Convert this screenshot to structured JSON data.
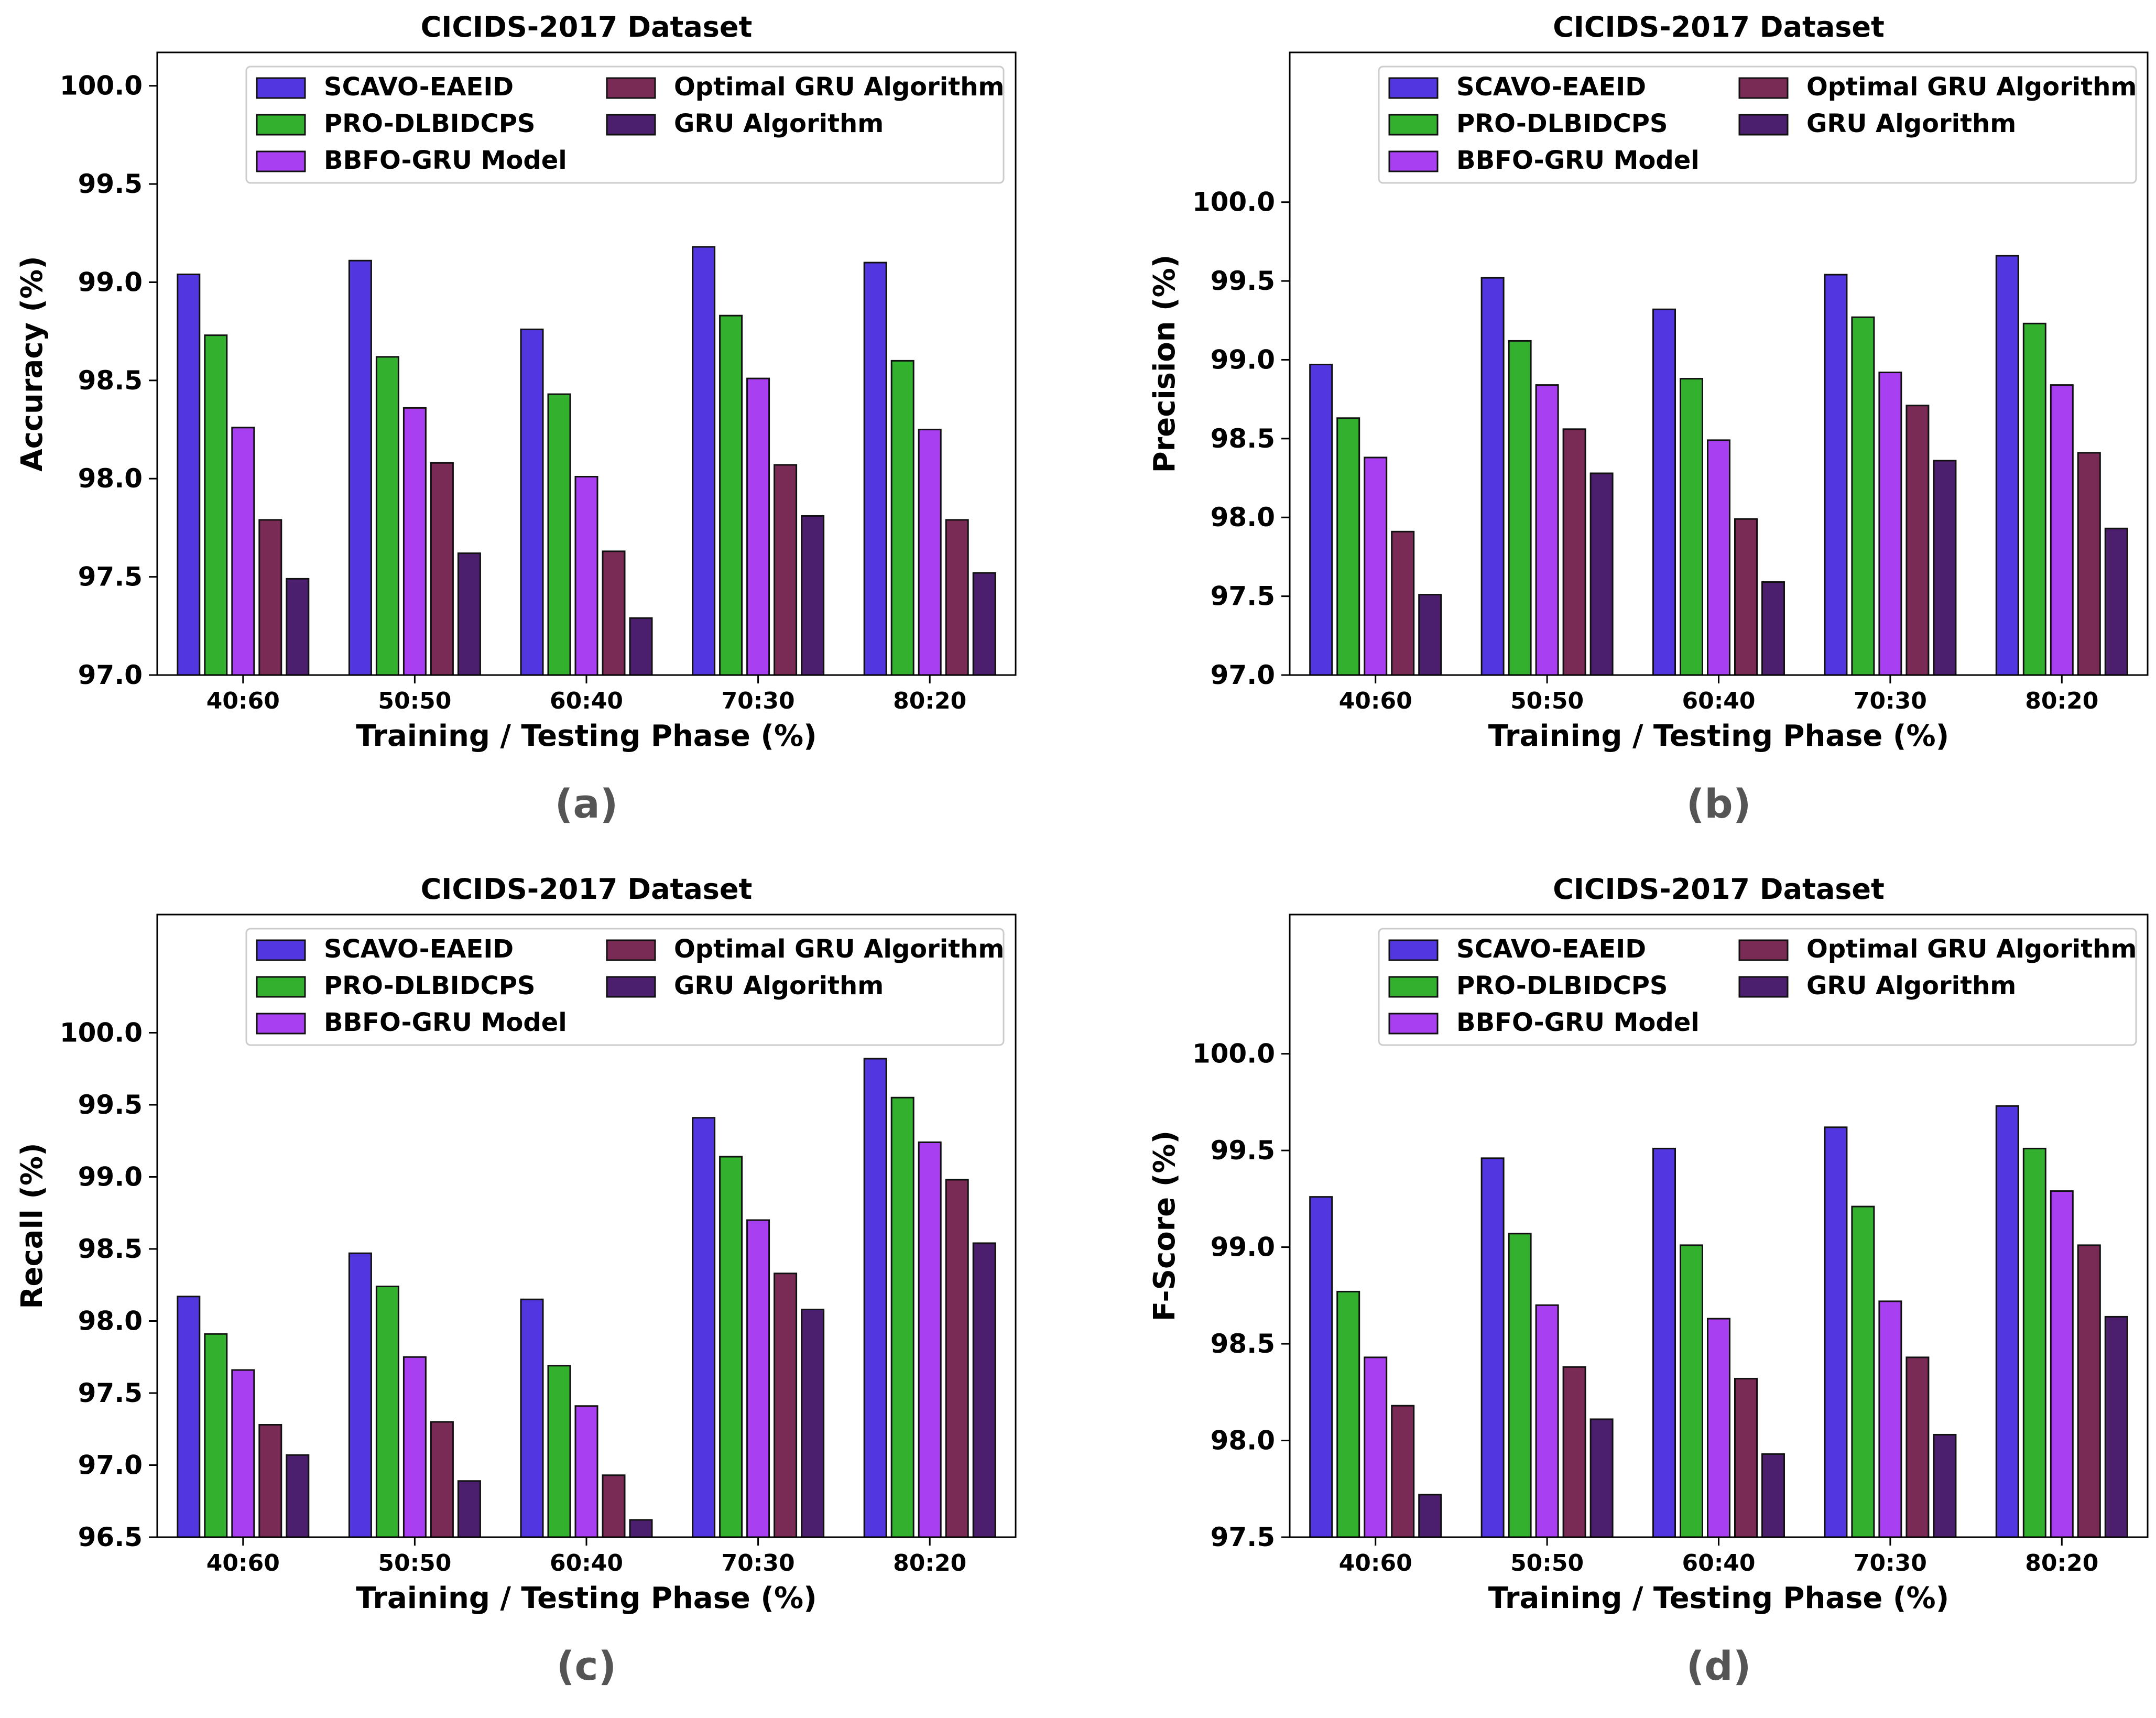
{
  "figure": {
    "series_names": [
      "SCAVO-EAEID",
      "PRO-DLBIDCPS",
      "BBFO-GRU Model",
      "Optimal GRU Algorithm",
      "GRU Algorithm"
    ],
    "colors": {
      "SCAVO-EAEID": "#5236e0",
      "PRO-DLBIDCPS": "#33b02e",
      "BBFO-GRU Model": "#a83ff0",
      "Optimal GRU Algorithm": "#7a2b55",
      "GRU Algorithm": "#4b1f6e",
      "axis": "#000000",
      "caption": "#555555"
    }
  },
  "chart_data": [
    {
      "panel": "(a)",
      "type": "bar",
      "title": "CICIDS-2017 Dataset",
      "xlabel": "Training / Testing Phase (%)",
      "ylabel": "Accuracy (%)",
      "categories": [
        "40:60",
        "50:50",
        "60:40",
        "70:30",
        "80:20"
      ],
      "ylim": [
        97.0,
        100.17
      ],
      "yticks": [
        "97.0",
        "97.5",
        "98.0",
        "98.5",
        "99.0",
        "99.5",
        "100.0"
      ],
      "legend": "top-center",
      "series": [
        {
          "name": "SCAVO-EAEID",
          "values": [
            99.04,
            99.11,
            98.76,
            99.18,
            99.1
          ]
        },
        {
          "name": "PRO-DLBIDCPS",
          "values": [
            98.73,
            98.62,
            98.43,
            98.83,
            98.6
          ]
        },
        {
          "name": "BBFO-GRU Model",
          "values": [
            98.26,
            98.36,
            98.01,
            98.51,
            98.25
          ]
        },
        {
          "name": "Optimal GRU Algorithm",
          "values": [
            97.79,
            98.08,
            97.63,
            98.07,
            97.79
          ]
        },
        {
          "name": "GRU Algorithm",
          "values": [
            97.49,
            97.62,
            97.29,
            97.81,
            97.52
          ]
        }
      ]
    },
    {
      "panel": "(b)",
      "type": "bar",
      "title": "CICIDS-2017 Dataset",
      "xlabel": "Training / Testing Phase (%)",
      "ylabel": "Precision (%)",
      "categories": [
        "40:60",
        "50:50",
        "60:40",
        "70:30",
        "80:20"
      ],
      "ylim": [
        97.0,
        100.95
      ],
      "yticks": [
        "97.0",
        "97.5",
        "98.0",
        "98.5",
        "99.0",
        "99.5",
        "100.0"
      ],
      "legend": "top-center",
      "series": [
        {
          "name": "SCAVO-EAEID",
          "values": [
            98.97,
            99.52,
            99.32,
            99.54,
            99.66
          ]
        },
        {
          "name": "PRO-DLBIDCPS",
          "values": [
            98.63,
            99.12,
            98.88,
            99.27,
            99.23
          ]
        },
        {
          "name": "BBFO-GRU Model",
          "values": [
            98.38,
            98.84,
            98.49,
            98.92,
            98.84
          ]
        },
        {
          "name": "Optimal GRU Algorithm",
          "values": [
            97.91,
            98.56,
            97.99,
            98.71,
            98.41
          ]
        },
        {
          "name": "GRU Algorithm",
          "values": [
            97.51,
            98.28,
            97.59,
            98.36,
            97.93
          ]
        }
      ]
    },
    {
      "panel": "(c)",
      "type": "bar",
      "title": "CICIDS-2017 Dataset",
      "xlabel": "Training / Testing Phase (%)",
      "ylabel": "Recall (%)",
      "categories": [
        "40:60",
        "50:50",
        "60:40",
        "70:30",
        "80:20"
      ],
      "ylim": [
        96.5,
        100.82
      ],
      "yticks": [
        "96.5",
        "97.0",
        "97.5",
        "98.0",
        "98.5",
        "99.0",
        "99.5",
        "100.0"
      ],
      "legend": "top-center",
      "series": [
        {
          "name": "SCAVO-EAEID",
          "values": [
            98.17,
            98.47,
            98.15,
            99.41,
            99.82
          ]
        },
        {
          "name": "PRO-DLBIDCPS",
          "values": [
            97.91,
            98.24,
            97.69,
            99.14,
            99.55
          ]
        },
        {
          "name": "BBFO-GRU Model",
          "values": [
            97.66,
            97.75,
            97.41,
            98.7,
            99.24
          ]
        },
        {
          "name": "Optimal GRU Algorithm",
          "values": [
            97.28,
            97.3,
            96.93,
            98.33,
            98.98
          ]
        },
        {
          "name": "GRU Algorithm",
          "values": [
            97.07,
            96.89,
            96.62,
            98.08,
            98.54
          ]
        }
      ]
    },
    {
      "panel": "(d)",
      "type": "bar",
      "title": "CICIDS-2017 Dataset",
      "xlabel": "Training / Testing Phase (%)",
      "ylabel": "F-Score (%)",
      "categories": [
        "40:60",
        "50:50",
        "60:40",
        "70:30",
        "80:20"
      ],
      "ylim": [
        97.5,
        100.72
      ],
      "yticks": [
        "97.5",
        "98.0",
        "98.5",
        "99.0",
        "99.5",
        "100.0"
      ],
      "legend": "top-center",
      "series": [
        {
          "name": "SCAVO-EAEID",
          "values": [
            99.26,
            99.46,
            99.51,
            99.62,
            99.73
          ]
        },
        {
          "name": "PRO-DLBIDCPS",
          "values": [
            98.77,
            99.07,
            99.01,
            99.21,
            99.51
          ]
        },
        {
          "name": "BBFO-GRU Model",
          "values": [
            98.43,
            98.7,
            98.63,
            98.72,
            99.29
          ]
        },
        {
          "name": "Optimal GRU Algorithm",
          "values": [
            98.18,
            98.38,
            98.32,
            98.43,
            99.01
          ]
        },
        {
          "name": "GRU Algorithm",
          "values": [
            97.72,
            98.11,
            97.93,
            98.03,
            98.64
          ]
        }
      ]
    }
  ]
}
